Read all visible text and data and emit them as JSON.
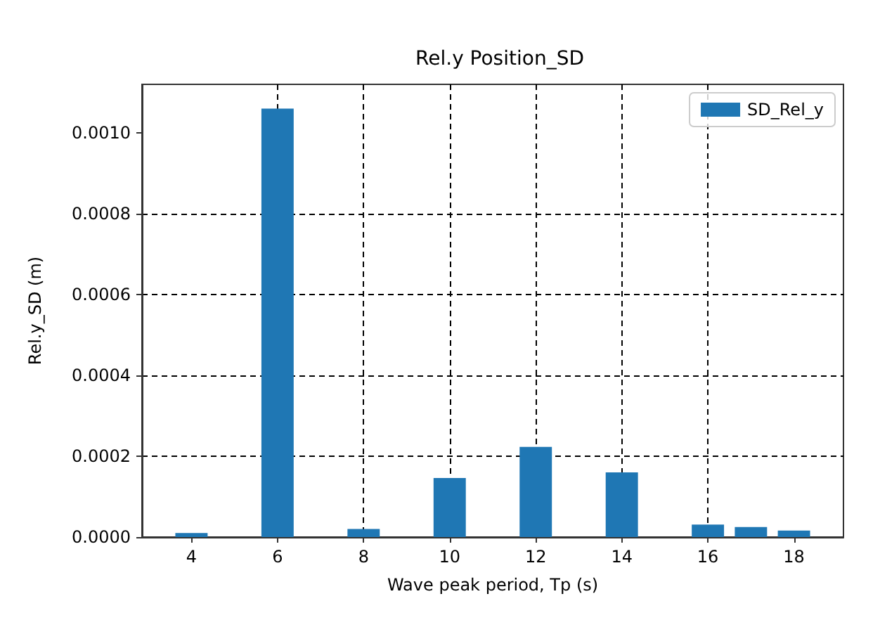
{
  "chart_data": {
    "type": "bar",
    "title": "Rel.y Position_SD",
    "xlabel": "Wave peak period, Tp (s)",
    "ylabel": "Rel.y_SD (m)",
    "x": [
      4,
      6,
      8,
      10,
      12,
      14,
      16,
      17,
      18
    ],
    "series": [
      {
        "name": "SD_Rel_y",
        "color": "#1f77b4",
        "values": [
          1e-05,
          0.00106,
          2e-05,
          0.000146,
          0.000223,
          0.00016,
          3.1e-05,
          2.5e-05,
          1.6e-05
        ]
      }
    ],
    "xlim": [
      2.85,
      19.15
    ],
    "xticks": [
      4,
      6,
      8,
      10,
      12,
      14,
      16,
      18
    ],
    "ylim": [
      0,
      0.00112
    ],
    "yticks": [
      {
        "value": 0,
        "label": "0.0000"
      },
      {
        "value": 0.0002,
        "label": "0.0002"
      },
      {
        "value": 0.0004,
        "label": "0.0004"
      },
      {
        "value": 0.0006,
        "label": "0.0006"
      },
      {
        "value": 0.0008,
        "label": "0.0008"
      },
      {
        "value": 0.001,
        "label": "0.0010"
      }
    ],
    "grid": true,
    "legend": "top right"
  }
}
